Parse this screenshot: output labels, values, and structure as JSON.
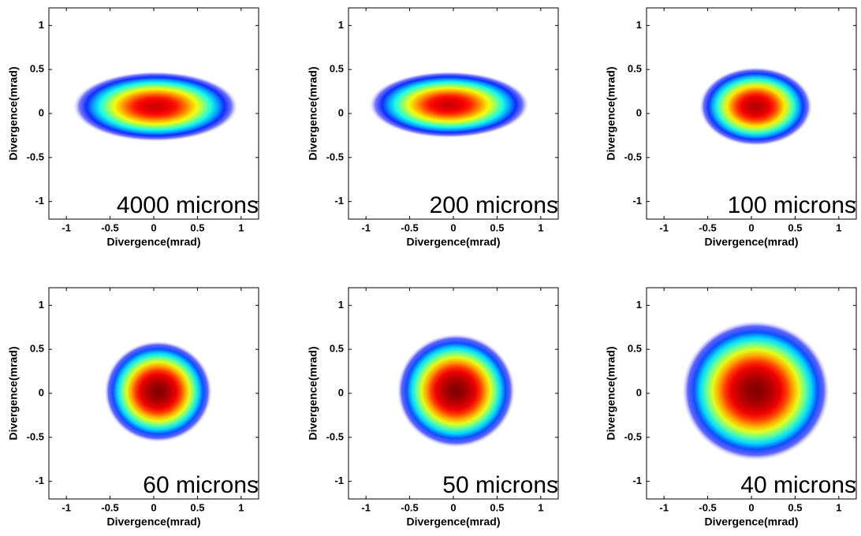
{
  "chart_data": [
    {
      "type": "heatmap",
      "annotation": "4000 microns",
      "xlabel": "Divergence(mrad)",
      "ylabel": "Divergence(mrad)",
      "xlim": [
        -1.2,
        1.2
      ],
      "ylim": [
        -1.2,
        1.2
      ],
      "xticks": [
        -1,
        -0.5,
        0,
        0.5,
        1
      ],
      "yticks": [
        -1,
        -0.5,
        0,
        0.5,
        1
      ],
      "colormap": [
        "#ffffff",
        "#1010ff",
        "#00ffff",
        "#ffff00",
        "#ff0000",
        "#800000"
      ],
      "spots": [
        {
          "x": 0.02,
          "y": 0.08,
          "rx": 0.95,
          "ry": 0.4,
          "peak": 0.88
        }
      ]
    },
    {
      "type": "heatmap",
      "annotation": "200 microns",
      "xlabel": "Divergence(mrad)",
      "ylabel": "Divergence(mrad)",
      "xlim": [
        -1.2,
        1.2
      ],
      "ylim": [
        -1.2,
        1.2
      ],
      "xticks": [
        -1,
        -0.5,
        0,
        0.5,
        1
      ],
      "yticks": [
        -1,
        -0.5,
        0,
        0.5,
        1
      ],
      "colormap": [
        "#ffffff",
        "#1010ff",
        "#00ffff",
        "#ffff00",
        "#ff0000",
        "#800000"
      ],
      "spots": [
        {
          "x": -0.05,
          "y": 0.1,
          "rx": 0.92,
          "ry": 0.38,
          "peak": 0.88
        }
      ]
    },
    {
      "type": "heatmap",
      "annotation": "100 microns",
      "xlabel": "Divergence(mrad)",
      "ylabel": "Divergence(mrad)",
      "xlim": [
        -1.2,
        1.2
      ],
      "ylim": [
        -1.2,
        1.2
      ],
      "xticks": [
        -1,
        -0.5,
        0,
        0.5,
        1
      ],
      "yticks": [
        -1,
        -0.5,
        0,
        0.5,
        1
      ],
      "colormap": [
        "#ffffff",
        "#1010ff",
        "#00ffff",
        "#ffff00",
        "#ff0000",
        "#800000"
      ],
      "spots": [
        {
          "x": 0.05,
          "y": 0.08,
          "rx": 0.65,
          "ry": 0.45,
          "peak": 0.92
        }
      ]
    },
    {
      "type": "heatmap",
      "annotation": "60 microns",
      "xlabel": "Divergence(mrad)",
      "ylabel": "Divergence(mrad)",
      "xlim": [
        -1.2,
        1.2
      ],
      "ylim": [
        -1.2,
        1.2
      ],
      "xticks": [
        -1,
        -0.5,
        0,
        0.5,
        1
      ],
      "yticks": [
        -1,
        -0.5,
        0,
        0.5,
        1
      ],
      "colormap": [
        "#ffffff",
        "#1010ff",
        "#00ffff",
        "#ffff00",
        "#ff0000",
        "#800000"
      ],
      "spots": [
        {
          "x": 0.05,
          "y": 0.02,
          "rx": 0.62,
          "ry": 0.58,
          "peak": 1
        }
      ]
    },
    {
      "type": "heatmap",
      "annotation": "50 microns",
      "xlabel": "Divergence(mrad)",
      "ylabel": "Divergence(mrad)",
      "xlim": [
        -1.2,
        1.2
      ],
      "ylim": [
        -1.2,
        1.2
      ],
      "xticks": [
        -1,
        -0.5,
        0,
        0.5,
        1
      ],
      "yticks": [
        -1,
        -0.5,
        0,
        0.5,
        1
      ],
      "colormap": [
        "#ffffff",
        "#1010ff",
        "#00ffff",
        "#ffff00",
        "#ff0000",
        "#800000"
      ],
      "spots": [
        {
          "x": 0.03,
          "y": 0.03,
          "rx": 0.68,
          "ry": 0.65,
          "peak": 1
        }
      ]
    },
    {
      "type": "heatmap",
      "annotation": "40 microns",
      "xlabel": "Divergence(mrad)",
      "ylabel": "Divergence(mrad)",
      "xlim": [
        -1.2,
        1.2
      ],
      "ylim": [
        -1.2,
        1.2
      ],
      "xticks": [
        -1,
        -0.5,
        0,
        0.5,
        1
      ],
      "yticks": [
        -1,
        -0.5,
        0,
        0.5,
        1
      ],
      "colormap": [
        "#ffffff",
        "#1010ff",
        "#00ffff",
        "#ffff00",
        "#ff0000",
        "#800000"
      ],
      "spots": [
        {
          "x": 0.05,
          "y": 0.03,
          "rx": 0.85,
          "ry": 0.8,
          "peak": 1
        }
      ]
    }
  ]
}
